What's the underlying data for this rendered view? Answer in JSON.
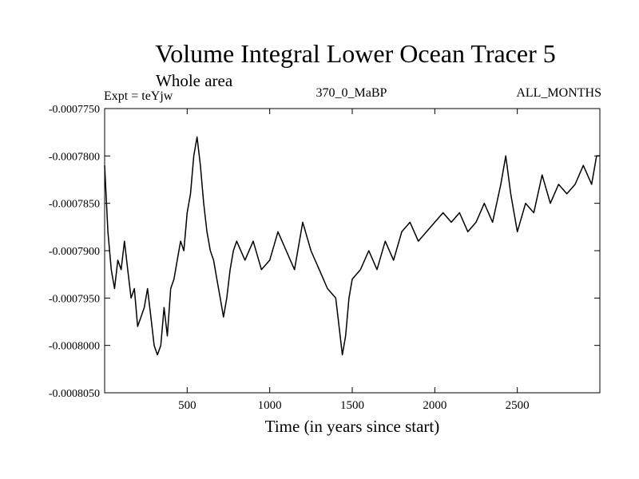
{
  "chart_data": {
    "type": "line",
    "title": "Volume Integral Lower Ocean Tracer 5",
    "subtitle": "Whole area",
    "experiment_label": "Expt = teYjw",
    "run_label": "370_0_MaBP",
    "months_label": "ALL_MONTHS",
    "xlabel": "Time (in years since start)",
    "ylabel": "",
    "xlim": [
      0,
      3000
    ],
    "ylim": [
      -0.000805,
      -0.000775
    ],
    "x_ticks": [
      {
        "value": 500,
        "label": "500"
      },
      {
        "value": 1000,
        "label": "1000"
      },
      {
        "value": 1500,
        "label": "1500"
      },
      {
        "value": 2000,
        "label": "2000"
      },
      {
        "value": 2500,
        "label": "2500"
      }
    ],
    "y_ticks": [
      {
        "value": -0.000775,
        "label": "-0.0007750"
      },
      {
        "value": -0.00078,
        "label": "-0.0007800"
      },
      {
        "value": -0.000785,
        "label": "-0.0007850"
      },
      {
        "value": -0.00079,
        "label": "-0.0007900"
      },
      {
        "value": -0.000795,
        "label": "-0.0007950"
      },
      {
        "value": -0.0008,
        "label": "-0.0008000"
      },
      {
        "value": -0.000805,
        "label": "-0.0008050"
      }
    ],
    "series": [
      {
        "name": "Volume Integral Lower Ocean Tracer 5",
        "x": [
          0,
          20,
          40,
          60,
          80,
          100,
          120,
          140,
          160,
          180,
          200,
          220,
          240,
          260,
          280,
          300,
          320,
          340,
          360,
          380,
          400,
          420,
          440,
          460,
          480,
          500,
          520,
          540,
          560,
          580,
          600,
          620,
          640,
          660,
          680,
          700,
          720,
          740,
          760,
          780,
          800,
          850,
          900,
          950,
          1000,
          1050,
          1100,
          1150,
          1200,
          1250,
          1300,
          1350,
          1400,
          1420,
          1440,
          1460,
          1480,
          1500,
          1550,
          1600,
          1650,
          1700,
          1750,
          1800,
          1850,
          1900,
          1950,
          2000,
          2050,
          2100,
          2150,
          2200,
          2250,
          2300,
          2350,
          2400,
          2430,
          2460,
          2500,
          2550,
          2600,
          2650,
          2700,
          2750,
          2800,
          2850,
          2900,
          2950,
          2980,
          3000
        ],
        "values": [
          -0.000781,
          -0.000788,
          -0.000792,
          -0.000794,
          -0.000791,
          -0.000792,
          -0.000789,
          -0.000792,
          -0.000795,
          -0.000794,
          -0.000798,
          -0.000797,
          -0.000796,
          -0.000794,
          -0.000797,
          -0.0008,
          -0.000801,
          -0.0008,
          -0.000796,
          -0.000799,
          -0.000794,
          -0.000793,
          -0.000791,
          -0.000789,
          -0.00079,
          -0.000786,
          -0.000784,
          -0.00078,
          -0.000778,
          -0.000781,
          -0.000785,
          -0.000788,
          -0.00079,
          -0.000791,
          -0.000793,
          -0.000795,
          -0.000797,
          -0.000795,
          -0.000792,
          -0.00079,
          -0.000789,
          -0.000791,
          -0.000789,
          -0.000792,
          -0.000791,
          -0.000788,
          -0.00079,
          -0.000792,
          -0.000787,
          -0.00079,
          -0.000792,
          -0.000794,
          -0.000795,
          -0.000798,
          -0.000801,
          -0.000799,
          -0.000795,
          -0.000793,
          -0.000792,
          -0.00079,
          -0.000792,
          -0.000789,
          -0.000791,
          -0.000788,
          -0.000787,
          -0.000789,
          -0.000788,
          -0.000787,
          -0.000786,
          -0.000787,
          -0.000786,
          -0.000788,
          -0.000787,
          -0.000785,
          -0.000787,
          -0.000783,
          -0.00078,
          -0.000784,
          -0.000788,
          -0.000785,
          -0.000786,
          -0.000782,
          -0.000785,
          -0.000783,
          -0.000784,
          -0.000783,
          -0.000781,
          -0.000783,
          -0.00078,
          -0.00078
        ]
      }
    ]
  }
}
